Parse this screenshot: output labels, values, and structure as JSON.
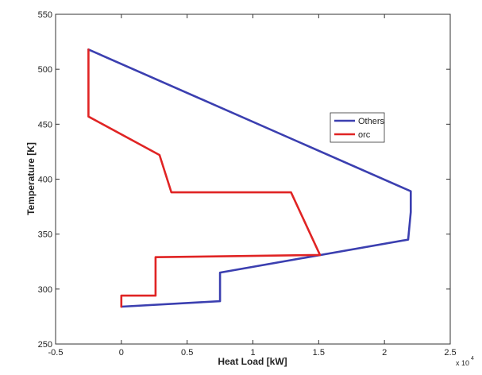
{
  "chart_data": {
    "type": "line",
    "xlabel": "Heat Load [kW]",
    "ylabel": "Temperature [K]",
    "x_multiplier_label": "x 10",
    "x_multiplier_exp": "4",
    "xlim": [
      -0.5,
      2.5
    ],
    "ylim": [
      250,
      550
    ],
    "x_ticks": [
      -0.5,
      0,
      0.5,
      1,
      1.5,
      2,
      2.5
    ],
    "x_tick_labels": [
      "-0.5",
      "0",
      "0.5",
      "1",
      "1.5",
      "2",
      "2.5"
    ],
    "y_ticks": [
      250,
      300,
      350,
      400,
      450,
      500,
      550
    ],
    "y_tick_labels": [
      "250",
      "300",
      "350",
      "400",
      "450",
      "500",
      "550"
    ],
    "grid": false,
    "legend_position": "upper-right",
    "series": [
      {
        "name": "Others",
        "color": "#3b3fb0",
        "x": [
          0.0,
          0.75,
          0.75,
          2.18,
          2.2,
          2.2,
          -0.25
        ],
        "y": [
          284,
          289,
          315,
          345,
          370,
          389,
          518
        ]
      },
      {
        "name": "orc",
        "color": "#e02424",
        "x": [
          0.0,
          0.0,
          0.26,
          0.26,
          1.51,
          1.29,
          0.38,
          0.29,
          -0.25,
          -0.25
        ],
        "y": [
          284,
          294,
          294,
          329,
          331,
          388,
          388,
          422,
          457,
          518
        ]
      }
    ]
  }
}
